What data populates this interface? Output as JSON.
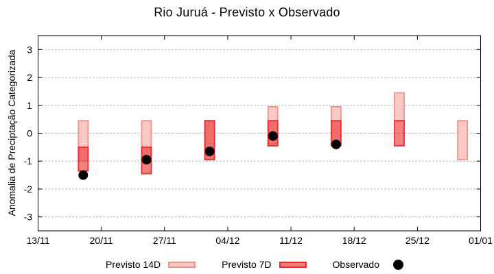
{
  "chart_data": {
    "type": "bar",
    "title": "Rio Juruá - Previsto x Observado",
    "ylabel": "Anomalia de Preciptação Categorizada",
    "xlabel": "",
    "ylim": [
      -3.5,
      3.5
    ],
    "yticks": [
      -3,
      -2,
      -1,
      0,
      1,
      2,
      3
    ],
    "grid": true,
    "legend_position": "below",
    "xticks": [
      {
        "label": "13/11",
        "day": 0
      },
      {
        "label": "20/11",
        "day": 7
      },
      {
        "label": "27/11",
        "day": 14
      },
      {
        "label": "04/12",
        "day": 21
      },
      {
        "label": "11/12",
        "day": 28
      },
      {
        "label": "18/12",
        "day": 35
      },
      {
        "label": "25/12",
        "day": 42
      },
      {
        "label": "01/01",
        "day": 49
      }
    ],
    "groups": [
      {
        "date": "18/11",
        "day": 5,
        "previsto_14d": [
          -1.0,
          0.45
        ],
        "previsto_7d": [
          -1.35,
          -0.5
        ],
        "observado": -1.5
      },
      {
        "date": "25/11",
        "day": 12,
        "previsto_14d": [
          -1.0,
          0.45
        ],
        "previsto_7d": [
          -1.45,
          -0.5
        ],
        "observado": -0.95
      },
      {
        "date": "02/12",
        "day": 19,
        "previsto_14d": [
          -0.95,
          0.45
        ],
        "previsto_7d": [
          -0.95,
          0.45
        ],
        "observado": -0.65
      },
      {
        "date": "09/12",
        "day": 26,
        "previsto_14d": [
          -0.45,
          0.95
        ],
        "previsto_7d": [
          -0.45,
          0.45
        ],
        "observado": -0.1
      },
      {
        "date": "16/12",
        "day": 33,
        "previsto_14d": [
          -0.45,
          0.95
        ],
        "previsto_7d": [
          -0.45,
          0.45
        ],
        "observado": -0.4
      },
      {
        "date": "23/12",
        "day": 40,
        "previsto_14d": [
          0.45,
          1.45
        ],
        "previsto_7d": [
          -0.45,
          0.45
        ],
        "observado": null
      },
      {
        "date": "30/12",
        "day": 47,
        "previsto_14d": [
          -0.95,
          0.45
        ],
        "previsto_7d": null,
        "observado": null
      }
    ],
    "legend": [
      {
        "label": "Previsto 14D",
        "key": "previsto_14d"
      },
      {
        "label": "Previsto 7D",
        "key": "previsto_7d"
      },
      {
        "label": "Observado",
        "key": "observado"
      }
    ],
    "colors": {
      "previsto_14d": {
        "fill": "#fac9c4",
        "border": "#f0938b"
      },
      "previsto_7d": {
        "fill": "#ee3333",
        "fill_opacity": 0.62,
        "border": "#e62e2e",
        "legend_fill": "#f47c7c"
      },
      "observado": "#000000",
      "grid": "#9a9a9a",
      "axis": "#000000"
    }
  }
}
